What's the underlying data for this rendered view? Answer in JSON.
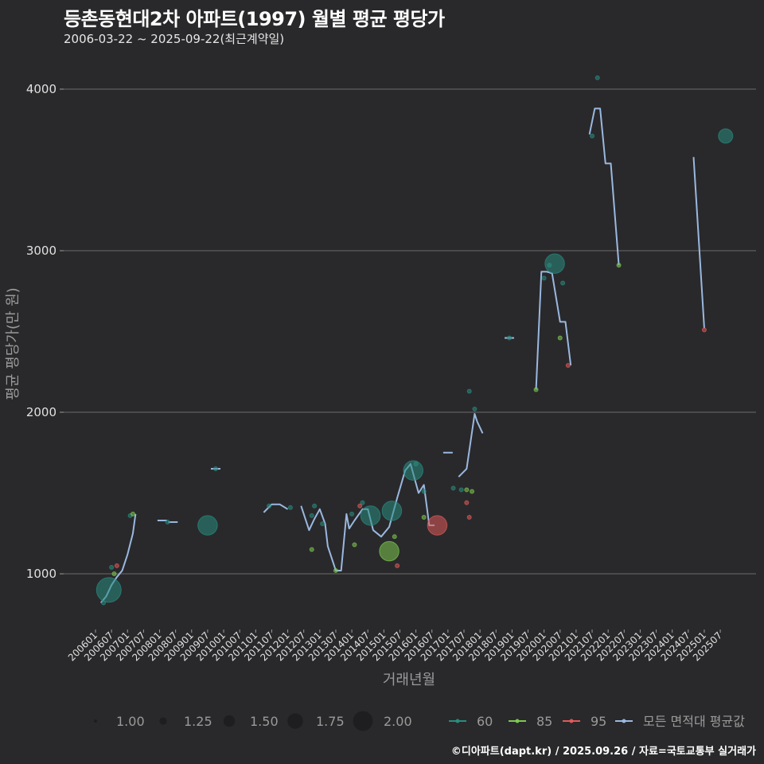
{
  "title": "등촌동현대2차 아파트(1997) 월별 평균 평당가",
  "subtitle": "2006-03-22 ~ 2025-09-22(최근계약일)",
  "caption": "©디아파트(dapt.kr) / 2025.09.26 / 자료=국토교통부 실거래가",
  "colors": {
    "background": "#29292b",
    "grid": "#6a6a6a",
    "s60": "#2a8c80",
    "s85": "#7ec850",
    "s95": "#e05a5a",
    "avg": "#9ab8e0"
  },
  "chart_data": {
    "type": "line",
    "title": "등촌동현대2차 아파트(1997) 월별 평균 평당가",
    "subtitle": "2006-03-22 ~ 2025-09-22(최근계약일)",
    "xlabel": "거래년월",
    "ylabel": "평균 평당가(만 원)",
    "ylim": [
      700,
      4100
    ],
    "yticks": [
      1000,
      2000,
      3000,
      4000
    ],
    "grid": true,
    "xticks": [
      "200601",
      "200607",
      "200701",
      "200707",
      "200801",
      "200807",
      "200901",
      "200907",
      "201001",
      "201007",
      "201101",
      "201107",
      "201201",
      "201207",
      "201301",
      "201307",
      "201401",
      "201407",
      "201501",
      "201507",
      "201601",
      "201607",
      "201701",
      "201707",
      "201801",
      "201807",
      "201901",
      "201907",
      "202001",
      "202007",
      "202101",
      "202107",
      "202201",
      "202207",
      "202301",
      "202307",
      "202401",
      "202407",
      "202501",
      "202507"
    ],
    "legend_size": {
      "title": "",
      "values": [
        "1.00",
        "1.25",
        "1.50",
        "1.75",
        "2.00"
      ]
    },
    "legend_color": {
      "values": [
        "60",
        "85",
        "95",
        "모든 면적대 평균값"
      ]
    },
    "series": [
      {
        "name": "모든 면적대 평균값",
        "type": "line",
        "points": [
          [
            "200603",
            820
          ],
          [
            "200605",
            860
          ],
          [
            "200607",
            930
          ],
          [
            "200609",
            980
          ],
          [
            "200611",
            1020
          ],
          [
            "200701",
            1120
          ],
          [
            "200703",
            1250
          ],
          [
            "200704",
            1370
          ],
          [
            "200802",
            1330
          ],
          [
            "200806",
            1320
          ],
          [
            "200910",
            1650
          ],
          [
            "201104",
            1380
          ],
          [
            "201107",
            1430
          ],
          [
            "201110",
            1430
          ],
          [
            "201201",
            1400
          ],
          [
            "201206",
            1420
          ],
          [
            "201209",
            1270
          ],
          [
            "201211",
            1340
          ],
          [
            "201301",
            1400
          ],
          [
            "201303",
            1310
          ],
          [
            "201304",
            1170
          ],
          [
            "201307",
            1020
          ],
          [
            "201309",
            1020
          ],
          [
            "201311",
            1370
          ],
          [
            "201312",
            1280
          ],
          [
            "201402",
            1330
          ],
          [
            "201405",
            1400
          ],
          [
            "201407",
            1400
          ],
          [
            "201409",
            1270
          ],
          [
            "201412",
            1230
          ],
          [
            "201503",
            1290
          ],
          [
            "201506",
            1470
          ],
          [
            "201509",
            1640
          ],
          [
            "201511",
            1680
          ],
          [
            "201602",
            1500
          ],
          [
            "201604",
            1550
          ],
          [
            "201606",
            1300
          ],
          [
            "201608",
            1300
          ],
          [
            "201701",
            1750
          ],
          [
            "201705",
            1600
          ],
          [
            "201708",
            1650
          ],
          [
            "201711",
            1990
          ],
          [
            "201712",
            1940
          ],
          [
            "201802",
            1870
          ],
          [
            "201812",
            2460
          ],
          [
            "201910",
            2140
          ],
          [
            "201912",
            2870
          ],
          [
            "202002",
            2870
          ],
          [
            "202004",
            2860
          ],
          [
            "202007",
            2560
          ],
          [
            "202009",
            2560
          ],
          [
            "202011",
            2290
          ],
          [
            "202106",
            3720
          ],
          [
            "202108",
            3880
          ],
          [
            "202110",
            3880
          ],
          [
            "202112",
            3540
          ],
          [
            "202202",
            3540
          ],
          [
            "202205",
            2910
          ],
          [
            "202409",
            3580
          ],
          [
            "202411",
            3050
          ],
          [
            "202501",
            2520
          ]
        ]
      },
      {
        "name": "60",
        "type": "scatter",
        "points": [
          [
            "200606",
            900,
            2.0
          ],
          [
            "200604",
            820,
            1.0
          ],
          [
            "200607",
            1040,
            1.0
          ],
          [
            "200702",
            1360,
            1.0
          ],
          [
            "200804",
            1320,
            1.0
          ],
          [
            "200907",
            1300,
            1.75
          ],
          [
            "200910",
            1650,
            1.0
          ],
          [
            "201106",
            1420,
            1.0
          ],
          [
            "201202",
            1410,
            1.0
          ],
          [
            "201210",
            1360,
            1.0
          ],
          [
            "201211",
            1420,
            1.0
          ],
          [
            "201302",
            1310,
            1.0
          ],
          [
            "201401",
            1370,
            1.0
          ],
          [
            "201405",
            1440,
            1.0
          ],
          [
            "201408",
            1360,
            1.75
          ],
          [
            "201504",
            1390,
            1.75
          ],
          [
            "201512",
            1640,
            1.75
          ],
          [
            "201601",
            1680,
            1.0
          ],
          [
            "201604",
            1510,
            1.0
          ],
          [
            "201703",
            1530,
            1.0
          ],
          [
            "201706",
            1520,
            1.0
          ],
          [
            "201709",
            2130,
            1.0
          ],
          [
            "201711",
            2020,
            1.0
          ],
          [
            "201812",
            2460,
            1.0
          ],
          [
            "202001",
            2830,
            1.0
          ],
          [
            "202003",
            2910,
            1.0
          ],
          [
            "202005",
            2920,
            1.75
          ],
          [
            "202008",
            2800,
            1.0
          ],
          [
            "202107",
            3710,
            1.0
          ],
          [
            "202109",
            4070,
            1.0
          ],
          [
            "202509",
            3710,
            1.5
          ]
        ]
      },
      {
        "name": "85",
        "type": "scatter",
        "points": [
          [
            "200703",
            1370,
            1.0
          ],
          [
            "200608",
            1000,
            1.0
          ],
          [
            "201210",
            1150,
            1.0
          ],
          [
            "201307",
            1020,
            1.0
          ],
          [
            "201402",
            1180,
            1.0
          ],
          [
            "201505",
            1230,
            1.0
          ],
          [
            "201503",
            1140,
            1.75
          ],
          [
            "201604",
            1350,
            1.0
          ],
          [
            "201708",
            1520,
            1.0
          ],
          [
            "201710",
            1510,
            1.0
          ],
          [
            "201910",
            2140,
            1.0
          ],
          [
            "202007",
            2460,
            1.0
          ],
          [
            "202205",
            2910,
            1.0
          ]
        ]
      },
      {
        "name": "95",
        "type": "scatter",
        "points": [
          [
            "200609",
            1050,
            1.0
          ],
          [
            "201404",
            1420,
            1.0
          ],
          [
            "201506",
            1050,
            1.0
          ],
          [
            "201609",
            1300,
            1.75
          ],
          [
            "201708",
            1440,
            1.0
          ],
          [
            "201709",
            1350,
            1.0
          ],
          [
            "202010",
            2290,
            1.0
          ],
          [
            "202501",
            2510,
            1.0
          ]
        ]
      }
    ]
  }
}
